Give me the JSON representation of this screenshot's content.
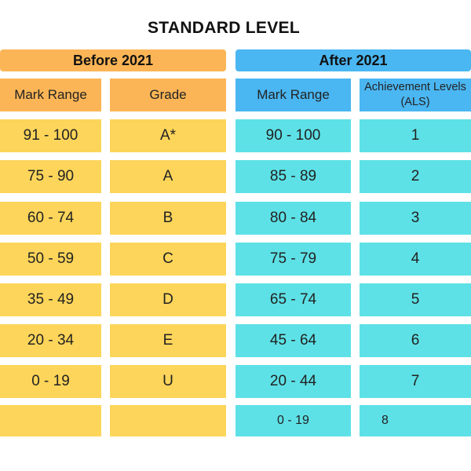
{
  "title": "STANDARD LEVEL",
  "before": {
    "header": "Before 2021",
    "columns": [
      "Mark Range",
      "Grade"
    ],
    "rows": [
      [
        "91 - 100",
        "A*"
      ],
      [
        "75 - 90",
        "A"
      ],
      [
        "60 - 74",
        "B"
      ],
      [
        "50 - 59",
        "C"
      ],
      [
        "35 - 49",
        "D"
      ],
      [
        "20 - 34",
        "E"
      ],
      [
        "0 - 19",
        "U"
      ],
      [
        "",
        ""
      ]
    ]
  },
  "after": {
    "header": "After 2021",
    "columns": [
      "Mark Range",
      "Achievement Levels (ALS)"
    ],
    "rows": [
      [
        "90 - 100",
        "1"
      ],
      [
        "85 - 89",
        "2"
      ],
      [
        "80 - 84",
        "3"
      ],
      [
        "75 - 79",
        "4"
      ],
      [
        "65 - 74",
        "5"
      ],
      [
        "45 - 64",
        "6"
      ],
      [
        "20 - 44",
        "7"
      ],
      [
        "0 - 19",
        "8"
      ]
    ]
  },
  "colors": {
    "orange": "#FBB556",
    "blue": "#4AB6F2",
    "yellow": "#FDD55A",
    "cyan": "#5DE1E6"
  }
}
